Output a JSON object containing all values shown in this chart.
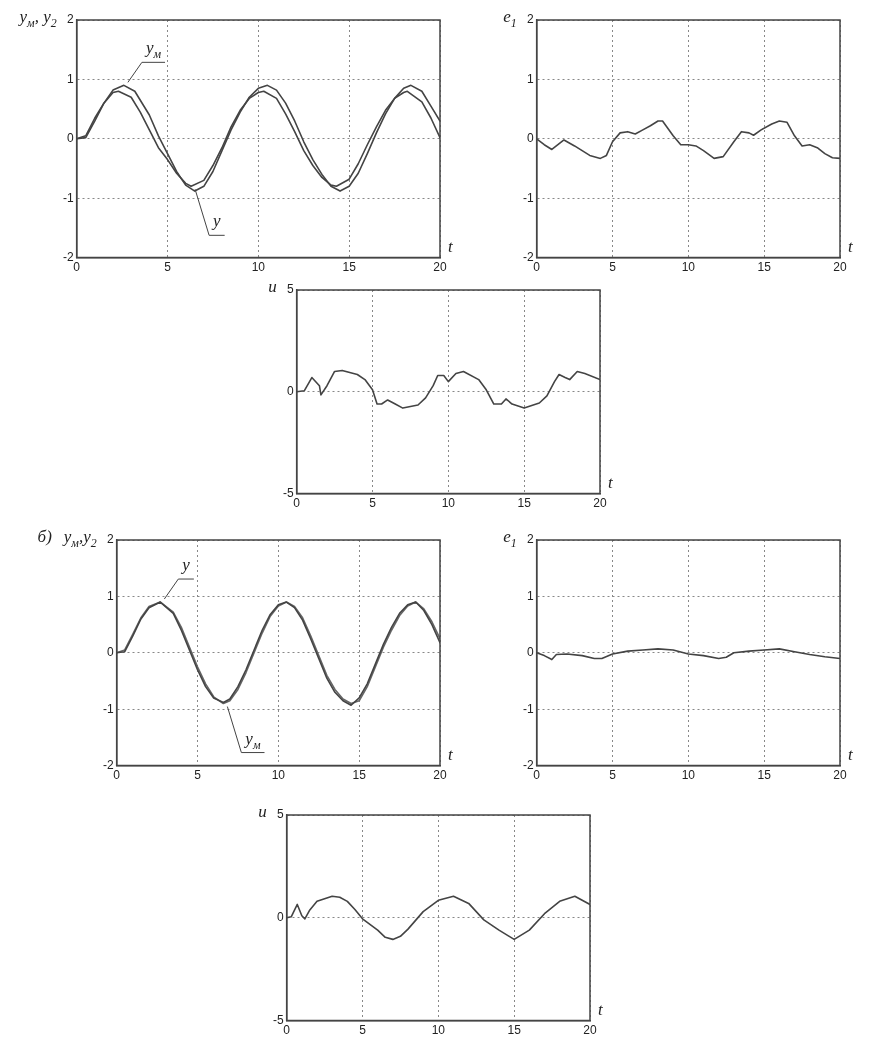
{
  "chart_data": [
    {
      "type": "line",
      "ylabel": "y$_{м}$, y$_{2}$",
      "xlabel": "t",
      "xlim": [
        0,
        20
      ],
      "xticks": [
        0,
        5,
        10,
        15,
        20
      ],
      "ylim": [
        -2,
        2
      ],
      "yticks": [
        -2,
        -1,
        0,
        1,
        2
      ],
      "grid": true,
      "line_style": "solid",
      "series": [
        {
          "name": "y$_{м}$",
          "color": "#444444",
          "x": [
            0,
            0.5,
            1,
            1.5,
            2,
            2.6,
            3.2,
            4,
            4.5,
            5,
            5.5,
            6,
            6.5,
            7,
            7.5,
            8,
            8.5,
            9,
            9.5,
            10,
            10.5,
            11,
            11.5,
            12,
            12.5,
            13,
            13.5,
            14,
            14.5,
            15,
            15.5,
            16,
            16.5,
            17,
            17.5,
            18,
            18.4,
            19,
            19.5,
            20
          ],
          "values": [
            0,
            0.02,
            0.3,
            0.6,
            0.82,
            0.9,
            0.8,
            0.4,
            0.05,
            -0.25,
            -0.55,
            -0.78,
            -0.88,
            -0.8,
            -0.55,
            -0.2,
            0.15,
            0.45,
            0.7,
            0.85,
            0.9,
            0.82,
            0.6,
            0.3,
            -0.05,
            -0.35,
            -0.6,
            -0.8,
            -0.88,
            -0.8,
            -0.58,
            -0.25,
            0.1,
            0.42,
            0.68,
            0.85,
            0.9,
            0.8,
            0.55,
            0.3
          ]
        },
        {
          "name": "y",
          "color": "#444444",
          "x": [
            0,
            0.5,
            1,
            1.5,
            2,
            2.3,
            3,
            3.5,
            4,
            4.5,
            5,
            5.5,
            6,
            6.3,
            7,
            7.5,
            8,
            8.5,
            9,
            9.5,
            10,
            10.3,
            11,
            11.5,
            12,
            12.5,
            13,
            13.5,
            14,
            14.3,
            15,
            15.5,
            16,
            16.5,
            17,
            17.5,
            18,
            18.2,
            19,
            19.5,
            20
          ],
          "values": [
            0,
            0.05,
            0.35,
            0.6,
            0.78,
            0.8,
            0.7,
            0.45,
            0.15,
            -0.15,
            -0.35,
            -0.58,
            -0.75,
            -0.8,
            -0.7,
            -0.45,
            -0.15,
            0.2,
            0.48,
            0.68,
            0.78,
            0.8,
            0.68,
            0.42,
            0.12,
            -0.2,
            -0.45,
            -0.65,
            -0.78,
            -0.8,
            -0.68,
            -0.42,
            -0.1,
            0.2,
            0.48,
            0.68,
            0.78,
            0.8,
            0.62,
            0.35,
            0.02
          ]
        }
      ]
    },
    {
      "type": "line",
      "ylabel": "e$_{1}$",
      "xlabel": "t",
      "xlim": [
        0,
        20
      ],
      "xticks": [
        0,
        5,
        10,
        15,
        20
      ],
      "ylim": [
        -2,
        2
      ],
      "yticks": [
        -2,
        -1,
        0,
        1,
        2
      ],
      "grid": true,
      "line_style": "solid",
      "series": [
        {
          "color": "#444444",
          "x": [
            0,
            0.5,
            1,
            1.8,
            2.5,
            3.5,
            4.2,
            4.6,
            5,
            5.5,
            6,
            6.5,
            7,
            7.5,
            8,
            8.3,
            9,
            9.5,
            10,
            10.5,
            11,
            11.7,
            12.3,
            13,
            13.5,
            14,
            14.3,
            14.8,
            15.5,
            16,
            16.5,
            17,
            17.5,
            18,
            18.5,
            19,
            19.5,
            20
          ],
          "values": [
            0,
            -0.1,
            -0.18,
            -0.02,
            -0.12,
            -0.28,
            -0.33,
            -0.28,
            -0.05,
            0.1,
            0.12,
            0.08,
            0.15,
            0.22,
            0.3,
            0.3,
            0.05,
            -0.1,
            -0.1,
            -0.12,
            -0.2,
            -0.33,
            -0.3,
            -0.05,
            0.12,
            0.1,
            0.06,
            0.15,
            0.25,
            0.3,
            0.28,
            0.05,
            -0.12,
            -0.1,
            -0.15,
            -0.25,
            -0.32,
            -0.33
          ]
        }
      ]
    },
    {
      "type": "line",
      "ylabel": "u",
      "xlabel": "t",
      "xlim": [
        0,
        20
      ],
      "xticks": [
        0,
        5,
        10,
        15,
        20
      ],
      "ylim": [
        -5,
        5
      ],
      "yticks": [
        -5,
        0,
        5
      ],
      "grid": true,
      "line_style": "solid",
      "series": [
        {
          "color": "#444444",
          "x": [
            0,
            0.5,
            1,
            1.5,
            1.6,
            2,
            2.5,
            3,
            4,
            4.5,
            5,
            5.3,
            5.6,
            6,
            6.5,
            7,
            8,
            8.5,
            9,
            9.3,
            9.7,
            10,
            10.5,
            11,
            12,
            12.5,
            13,
            13.5,
            13.8,
            14.2,
            15,
            16,
            16.5,
            17,
            17.3,
            17.7,
            18,
            18.5,
            19,
            20
          ],
          "values": [
            0,
            0.05,
            0.7,
            0.3,
            -0.15,
            0.3,
            1,
            1.05,
            0.85,
            0.6,
            0.1,
            -0.6,
            -0.6,
            -0.4,
            -0.6,
            -0.8,
            -0.65,
            -0.3,
            0.3,
            0.8,
            0.8,
            0.5,
            0.9,
            1,
            0.6,
            0.1,
            -0.6,
            -0.6,
            -0.35,
            -0.6,
            -0.8,
            -0.55,
            -0.2,
            0.5,
            0.85,
            0.7,
            0.6,
            1,
            0.9,
            0.6
          ]
        }
      ]
    },
    {
      "type": "line",
      "ylabel": "y$_{м}$,y$_{2}$",
      "xlabel": "t",
      "annotations": [
        "б)"
      ],
      "xlim": [
        0,
        20
      ],
      "xticks": [
        0,
        5,
        10,
        15,
        20
      ],
      "ylim": [
        -2,
        2
      ],
      "yticks": [
        -2,
        -1,
        0,
        1,
        2
      ],
      "grid": true,
      "line_style": "solid",
      "series": [
        {
          "name": "y",
          "color": "#444444",
          "x": [
            0,
            0.5,
            1,
            1.5,
            2,
            2.7,
            3.5,
            4,
            4.5,
            5,
            5.5,
            6,
            6.6,
            7,
            7.5,
            8,
            8.5,
            9,
            9.5,
            10,
            10.5,
            11,
            11.5,
            12,
            12.5,
            13,
            13.5,
            14,
            14.5,
            15,
            15.5,
            16,
            16.5,
            17,
            17.5,
            18,
            18.5,
            19,
            19.5,
            20
          ],
          "values": [
            0,
            0.02,
            0.3,
            0.6,
            0.8,
            0.9,
            0.7,
            0.4,
            0.05,
            -0.3,
            -0.6,
            -0.8,
            -0.88,
            -0.82,
            -0.6,
            -0.3,
            0.05,
            0.4,
            0.68,
            0.85,
            0.9,
            0.8,
            0.58,
            0.25,
            -0.1,
            -0.45,
            -0.7,
            -0.85,
            -0.93,
            -0.8,
            -0.55,
            -0.2,
            0.15,
            0.45,
            0.7,
            0.85,
            0.9,
            0.75,
            0.5,
            0.18
          ]
        },
        {
          "name": "y$_{м}$",
          "color": "#666666",
          "x": [
            0,
            0.5,
            1,
            1.5,
            2,
            2.7,
            3.5,
            4,
            4.5,
            5,
            5.5,
            6,
            6.6,
            7,
            7.5,
            8,
            8.5,
            9,
            9.5,
            10,
            10.5,
            11,
            11.5,
            12,
            12.5,
            13,
            13.5,
            14,
            14.5,
            15,
            15.5,
            16,
            16.5,
            17,
            17.5,
            18,
            18.5,
            19,
            19.5,
            20
          ],
          "values": [
            0,
            0.05,
            0.33,
            0.62,
            0.82,
            0.9,
            0.72,
            0.45,
            0.1,
            -0.25,
            -0.55,
            -0.78,
            -0.9,
            -0.85,
            -0.65,
            -0.35,
            0,
            0.35,
            0.65,
            0.83,
            0.9,
            0.82,
            0.62,
            0.3,
            -0.05,
            -0.4,
            -0.65,
            -0.82,
            -0.9,
            -0.85,
            -0.6,
            -0.25,
            0.1,
            0.4,
            0.66,
            0.83,
            0.9,
            0.78,
            0.55,
            0.25
          ]
        }
      ]
    },
    {
      "type": "line",
      "ylabel": "e$_{1}$",
      "xlabel": "t",
      "xlim": [
        0,
        20
      ],
      "xticks": [
        0,
        5,
        10,
        15,
        20
      ],
      "ylim": [
        -2,
        2
      ],
      "yticks": [
        -2,
        -1,
        0,
        1,
        2
      ],
      "grid": true,
      "line_style": "solid",
      "series": [
        {
          "color": "#444444",
          "x": [
            0,
            0.5,
            1,
            1.3,
            2,
            3,
            3.8,
            4.3,
            5,
            6,
            7,
            8,
            9,
            10,
            11,
            12,
            12.5,
            13,
            14,
            15,
            16,
            17,
            18,
            19,
            20
          ],
          "values": [
            0,
            -0.05,
            -0.12,
            -0.03,
            -0.02,
            -0.05,
            -0.1,
            -0.1,
            -0.02,
            0.03,
            0.05,
            0.07,
            0.05,
            -0.02,
            -0.05,
            -0.1,
            -0.08,
            0,
            0.03,
            0.05,
            0.07,
            0.02,
            -0.03,
            -0.07,
            -0.1
          ]
        }
      ]
    },
    {
      "type": "line",
      "ylabel": "u",
      "xlabel": "t",
      "xlim": [
        0,
        20
      ],
      "xticks": [
        0,
        5,
        10,
        15,
        20
      ],
      "ylim": [
        -5,
        5
      ],
      "yticks": [
        -5,
        0,
        5
      ],
      "grid": true,
      "line_style": "solid",
      "series": [
        {
          "color": "#444444",
          "x": [
            0,
            0.3,
            0.7,
            1,
            1.2,
            1.5,
            2,
            3,
            3.5,
            4,
            4.5,
            5,
            6,
            6.5,
            7,
            7.5,
            8,
            9,
            10,
            11,
            12,
            12.5,
            13,
            14,
            15,
            16,
            17,
            18,
            19,
            20
          ],
          "values": [
            0,
            0.05,
            0.65,
            0.1,
            -0.05,
            0.35,
            0.8,
            1.05,
            1,
            0.8,
            0.4,
            -0.05,
            -0.6,
            -0.95,
            -1.05,
            -0.9,
            -0.55,
            0.3,
            0.85,
            1.05,
            0.7,
            0.3,
            -0.1,
            -0.6,
            -1.05,
            -0.6,
            0.2,
            0.8,
            1.05,
            0.65
          ]
        }
      ]
    }
  ]
}
